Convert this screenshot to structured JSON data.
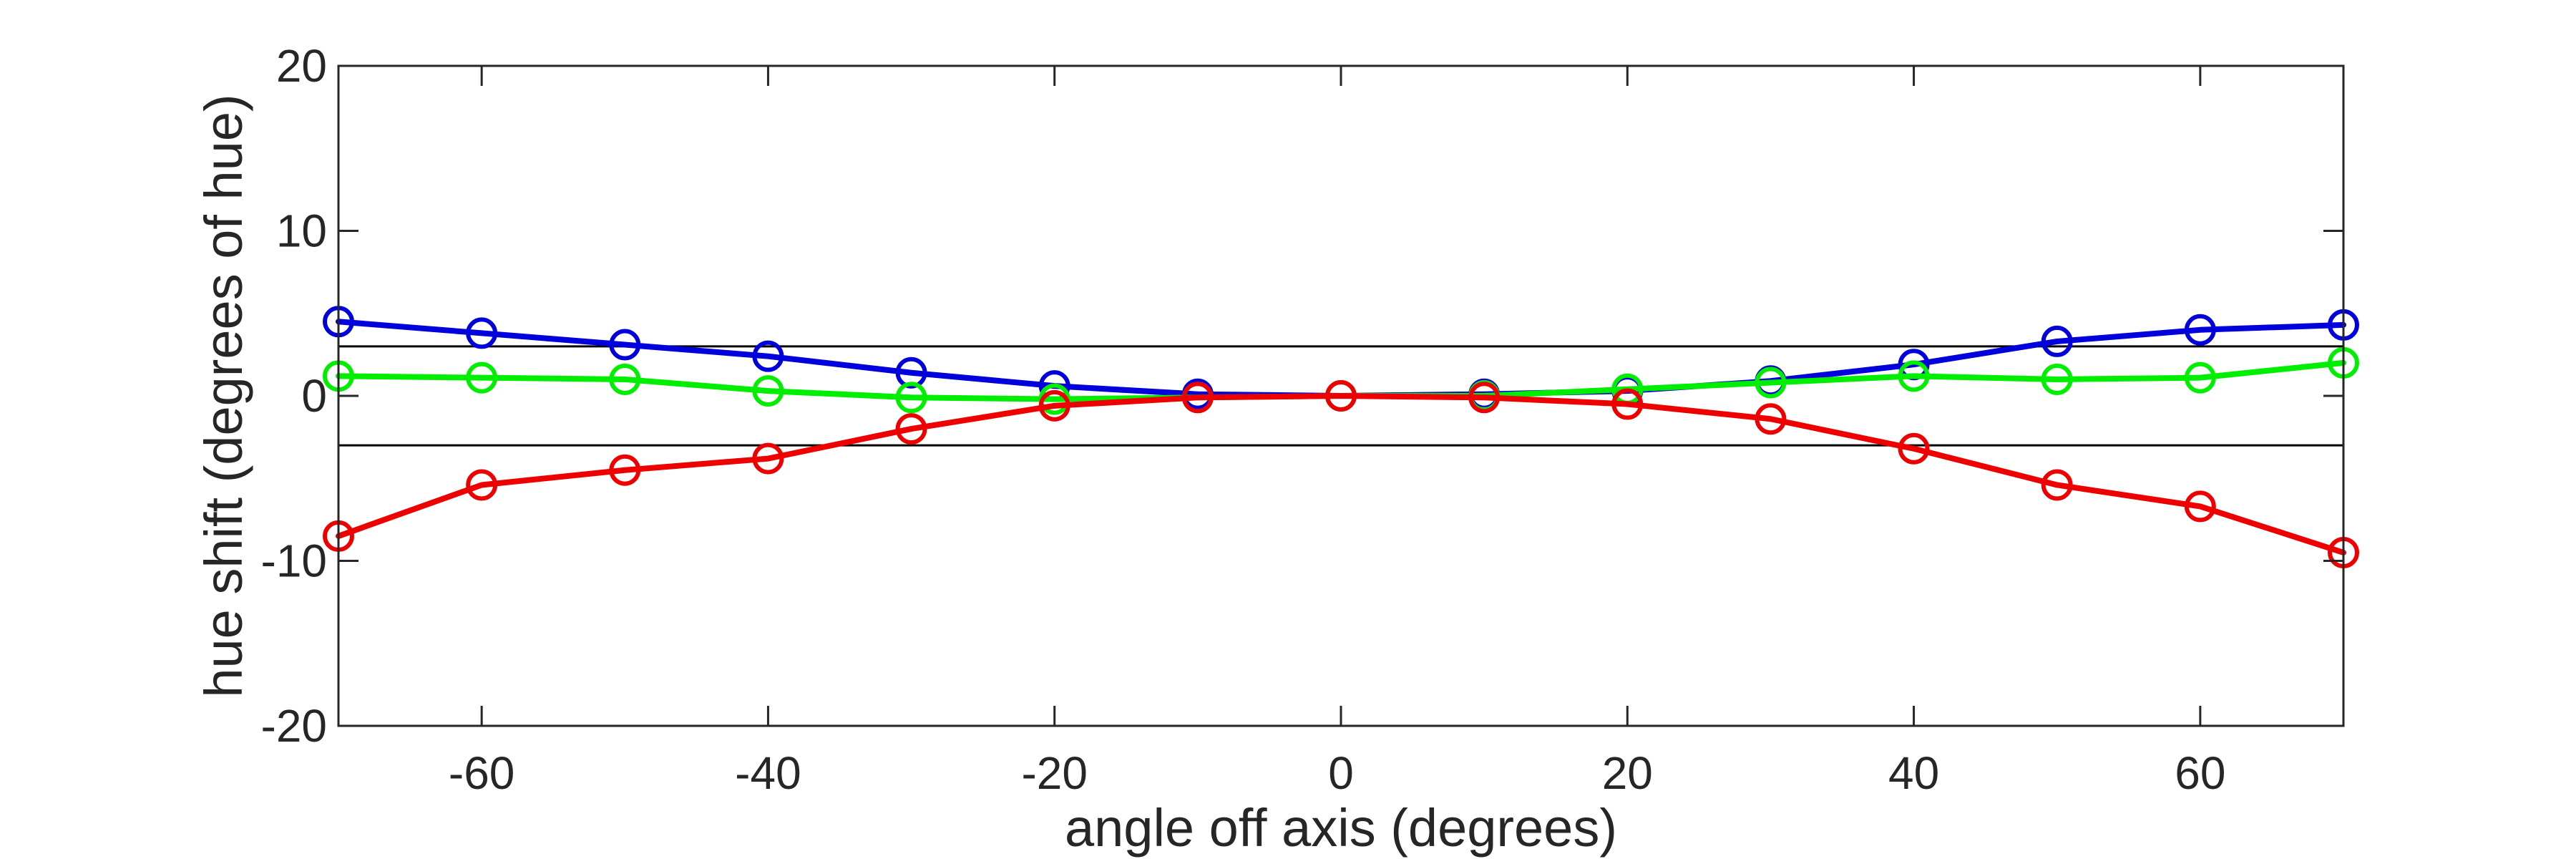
{
  "chart_data": {
    "type": "line",
    "xlabel": "angle off axis (degrees)",
    "ylabel": "hue shift (degrees of hue)",
    "xlim": [
      -70,
      70
    ],
    "ylim": [
      -20,
      20
    ],
    "x_ticks": [
      -60,
      -40,
      -20,
      0,
      20,
      40,
      60
    ],
    "y_ticks": [
      -20,
      -10,
      0,
      10,
      20
    ],
    "grid": false,
    "legend": "none",
    "reference_lines": [
      3,
      -3
    ],
    "x": [
      -70,
      -60,
      -50,
      -40,
      -30,
      -20,
      -10,
      0,
      10,
      20,
      30,
      40,
      50,
      60,
      70
    ],
    "series": [
      {
        "color": "#0000dd",
        "values": [
          4.5,
          3.8,
          3.1,
          2.4,
          1.4,
          0.6,
          0.1,
          0.0,
          0.1,
          0.3,
          0.9,
          1.9,
          3.3,
          4.0,
          4.3
        ]
      },
      {
        "color": "#00ee00",
        "values": [
          1.2,
          1.1,
          1.0,
          0.3,
          -0.1,
          -0.2,
          -0.1,
          0.0,
          0.0,
          0.4,
          0.8,
          1.2,
          1.0,
          1.1,
          2.0
        ]
      },
      {
        "color": "#ee0000",
        "values": [
          -8.5,
          -5.4,
          -4.5,
          -3.8,
          -2.0,
          -0.6,
          -0.1,
          0.0,
          -0.1,
          -0.5,
          -1.4,
          -3.2,
          -5.4,
          -6.7,
          -9.5
        ]
      }
    ]
  }
}
